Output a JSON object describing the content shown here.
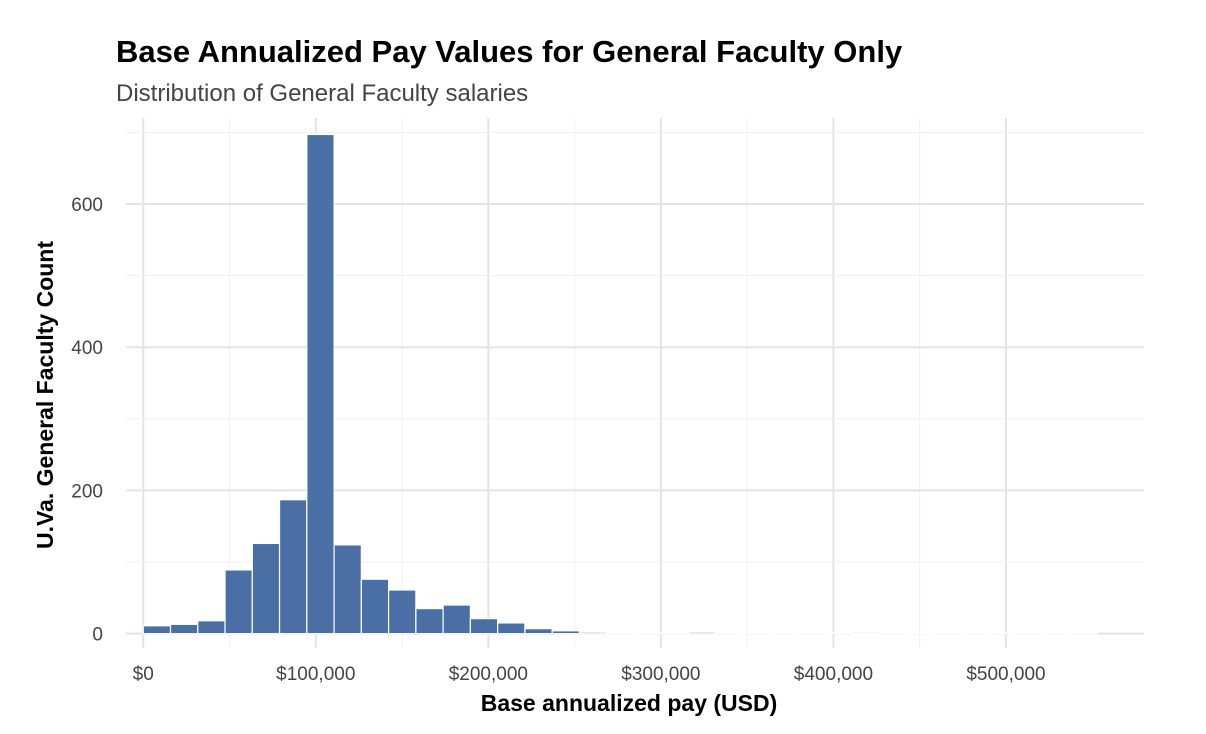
{
  "chart_data": {
    "type": "bar",
    "title": "Base Annualized Pay Values for General Faculty Only",
    "subtitle": "Distribution of General Faculty salaries",
    "xlabel": "Base annualized pay (USD)",
    "ylabel": "U.Va. General Faculty Count",
    "xlim": [
      -10000,
      580000
    ],
    "ylim": [
      -20,
      720
    ],
    "xticks": [
      0,
      100000,
      200000,
      300000,
      400000,
      500000
    ],
    "xtick_labels": [
      "$0",
      "$100,000",
      "$200,000",
      "$300,000",
      "$400,000",
      "$500,000"
    ],
    "yticks": [
      0,
      200,
      400,
      600
    ],
    "ytick_labels": [
      "0",
      "200",
      "400",
      "600"
    ],
    "bin_width": 15800,
    "bins_start": 0,
    "values": [
      11,
      13,
      18,
      89,
      126,
      187,
      697,
      124,
      76,
      61,
      35,
      40,
      21,
      15,
      7,
      4,
      2,
      1,
      1,
      1,
      2,
      1,
      1,
      1,
      1,
      1,
      0,
      1,
      1,
      1,
      1,
      1,
      1,
      1,
      1
    ],
    "bar_color": "#4a6fa5",
    "grid": true,
    "legend": "none"
  }
}
